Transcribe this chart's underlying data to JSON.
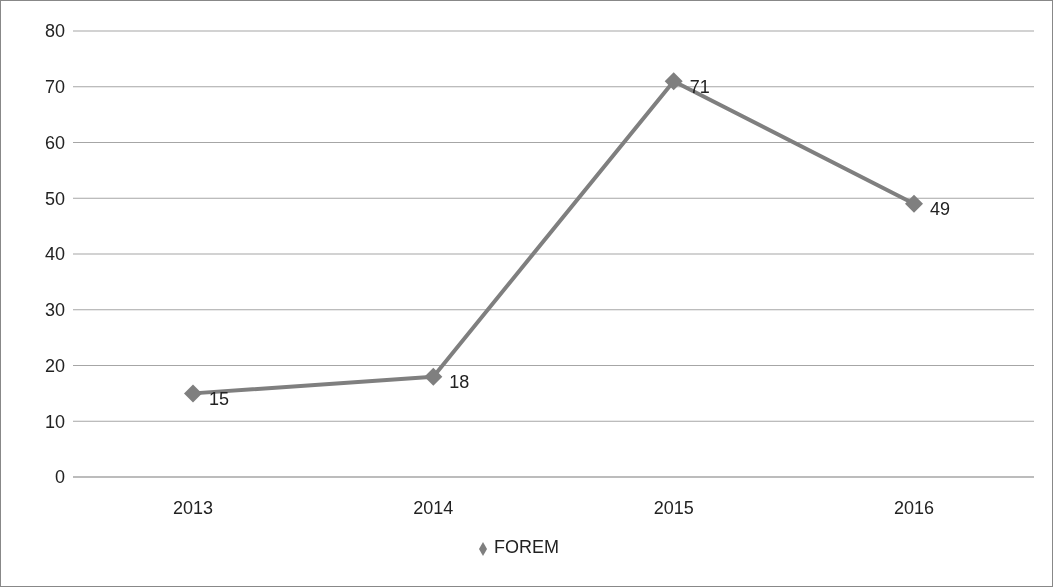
{
  "chart_data": {
    "type": "line",
    "categories": [
      "2013",
      "2014",
      "2015",
      "2016"
    ],
    "series": [
      {
        "name": "FOREM",
        "color": "#7f7f7f",
        "values": [
          15,
          18,
          71,
          49
        ]
      }
    ],
    "ylim": [
      0,
      80
    ],
    "yticks": [
      0,
      10,
      20,
      30,
      40,
      50,
      60,
      70,
      80
    ],
    "grid": "y",
    "legend": "bottom",
    "marker": "diamond",
    "line_style": "solid",
    "data_labels": true
  }
}
